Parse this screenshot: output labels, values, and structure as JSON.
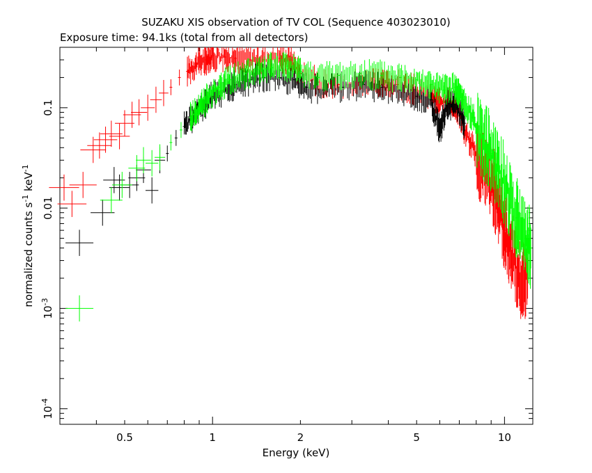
{
  "chart_data": {
    "type": "scatter",
    "title": "SUZAKU XIS observation of TV COL (Sequence 403023010)",
    "subtitle": "Exposure time: 94.1ks (total from all detectors)",
    "xlabel": "Energy (keV)",
    "ylabel_main": "normalized counts s",
    "ylabel_unit": "keV",
    "ylabel_exp": "-1",
    "x_scale": "log",
    "y_scale": "log",
    "xlim": [
      0.3,
      12.5
    ],
    "ylim": [
      7e-05,
      0.4
    ],
    "grid": false,
    "x_ticks": [
      {
        "value": 0.5,
        "label": "0.5"
      },
      {
        "value": 1,
        "label": "1"
      },
      {
        "value": 2,
        "label": "2"
      },
      {
        "value": 5,
        "label": "5"
      },
      {
        "value": 10,
        "label": "10"
      }
    ],
    "y_ticks": [
      {
        "value": 0.0001,
        "base": "10",
        "exp": "-4"
      },
      {
        "value": 0.001,
        "base": "10",
        "exp": "-3"
      },
      {
        "value": 0.01,
        "label": "0.01"
      },
      {
        "value": 0.1,
        "label": "0.1"
      }
    ],
    "series": [
      {
        "color": "#ff0000",
        "points": [
          [
            0.31,
            0.016
          ],
          [
            0.33,
            0.011
          ],
          [
            0.36,
            0.017
          ],
          [
            0.39,
            0.038
          ],
          [
            0.41,
            0.042
          ],
          [
            0.43,
            0.048
          ],
          [
            0.45,
            0.055
          ],
          [
            0.48,
            0.052
          ],
          [
            0.5,
            0.07
          ],
          [
            0.53,
            0.085
          ],
          [
            0.56,
            0.09
          ],
          [
            0.6,
            0.1
          ],
          [
            0.64,
            0.12
          ],
          [
            0.68,
            0.14
          ],
          [
            0.72,
            0.16
          ],
          [
            0.77,
            0.2
          ],
          [
            0.82,
            0.23
          ],
          [
            0.88,
            0.27
          ],
          [
            0.95,
            0.3
          ],
          [
            1.0,
            0.33
          ],
          [
            1.1,
            0.32
          ],
          [
            1.2,
            0.31
          ],
          [
            1.35,
            0.3
          ],
          [
            1.5,
            0.3
          ],
          [
            1.7,
            0.31
          ],
          [
            1.85,
            0.3
          ],
          [
            2.0,
            0.22
          ],
          [
            2.3,
            0.18
          ],
          [
            2.7,
            0.17
          ],
          [
            3.2,
            0.18
          ],
          [
            3.7,
            0.17
          ],
          [
            4.3,
            0.17
          ],
          [
            5.0,
            0.15
          ],
          [
            5.6,
            0.13
          ],
          [
            6.0,
            0.11
          ],
          [
            6.4,
            0.12
          ],
          [
            6.9,
            0.1
          ],
          [
            7.3,
            0.06
          ],
          [
            7.8,
            0.04
          ],
          [
            8.4,
            0.025
          ],
          [
            9.0,
            0.018
          ],
          [
            9.5,
            0.012
          ],
          [
            10.0,
            0.006
          ],
          [
            10.5,
            0.004
          ],
          [
            11.2,
            0.002
          ],
          [
            12.0,
            0.002
          ]
        ]
      },
      {
        "color": "#000000",
        "points": [
          [
            0.35,
            0.0045
          ],
          [
            0.42,
            0.009
          ],
          [
            0.46,
            0.019
          ],
          [
            0.48,
            0.016
          ],
          [
            0.52,
            0.017
          ],
          [
            0.55,
            0.02
          ],
          [
            0.58,
            0.024
          ],
          [
            0.62,
            0.015
          ],
          [
            0.66,
            0.03
          ],
          [
            0.7,
            0.035
          ],
          [
            0.75,
            0.05
          ],
          [
            0.8,
            0.065
          ],
          [
            0.86,
            0.08
          ],
          [
            0.92,
            0.1
          ],
          [
            1.0,
            0.13
          ],
          [
            1.1,
            0.15
          ],
          [
            1.2,
            0.17
          ],
          [
            1.35,
            0.19
          ],
          [
            1.5,
            0.2
          ],
          [
            1.7,
            0.2
          ],
          [
            1.9,
            0.19
          ],
          [
            2.1,
            0.16
          ],
          [
            2.4,
            0.15
          ],
          [
            2.8,
            0.16
          ],
          [
            3.3,
            0.17
          ],
          [
            3.8,
            0.16
          ],
          [
            4.4,
            0.15
          ],
          [
            5.0,
            0.13
          ],
          [
            5.6,
            0.12
          ],
          [
            6.0,
            0.06
          ],
          [
            6.4,
            0.11
          ],
          [
            6.9,
            0.1
          ],
          [
            7.3,
            0.07
          ]
        ]
      },
      {
        "color": "#00ff00",
        "points": [
          [
            0.35,
            0.001
          ],
          [
            0.45,
            0.012
          ],
          [
            0.49,
            0.017
          ],
          [
            0.55,
            0.025
          ],
          [
            0.58,
            0.03
          ],
          [
            0.62,
            0.028
          ],
          [
            0.66,
            0.032
          ],
          [
            0.72,
            0.045
          ],
          [
            0.78,
            0.06
          ],
          [
            0.84,
            0.08
          ],
          [
            0.9,
            0.1
          ],
          [
            0.97,
            0.13
          ],
          [
            1.05,
            0.16
          ],
          [
            1.15,
            0.19
          ],
          [
            1.3,
            0.22
          ],
          [
            1.45,
            0.24
          ],
          [
            1.6,
            0.25
          ],
          [
            1.8,
            0.26
          ],
          [
            2.0,
            0.23
          ],
          [
            2.3,
            0.2
          ],
          [
            2.7,
            0.21
          ],
          [
            3.2,
            0.22
          ],
          [
            3.8,
            0.21
          ],
          [
            4.4,
            0.2
          ],
          [
            5.0,
            0.19
          ],
          [
            5.6,
            0.17
          ],
          [
            6.2,
            0.15
          ],
          [
            6.8,
            0.16
          ],
          [
            7.2,
            0.12
          ],
          [
            7.8,
            0.08
          ],
          [
            8.4,
            0.05
          ],
          [
            9.0,
            0.035
          ],
          [
            9.5,
            0.025
          ],
          [
            10.2,
            0.015
          ],
          [
            11.0,
            0.008
          ],
          [
            11.8,
            0.005
          ],
          [
            12.3,
            0.004
          ]
        ]
      }
    ]
  }
}
